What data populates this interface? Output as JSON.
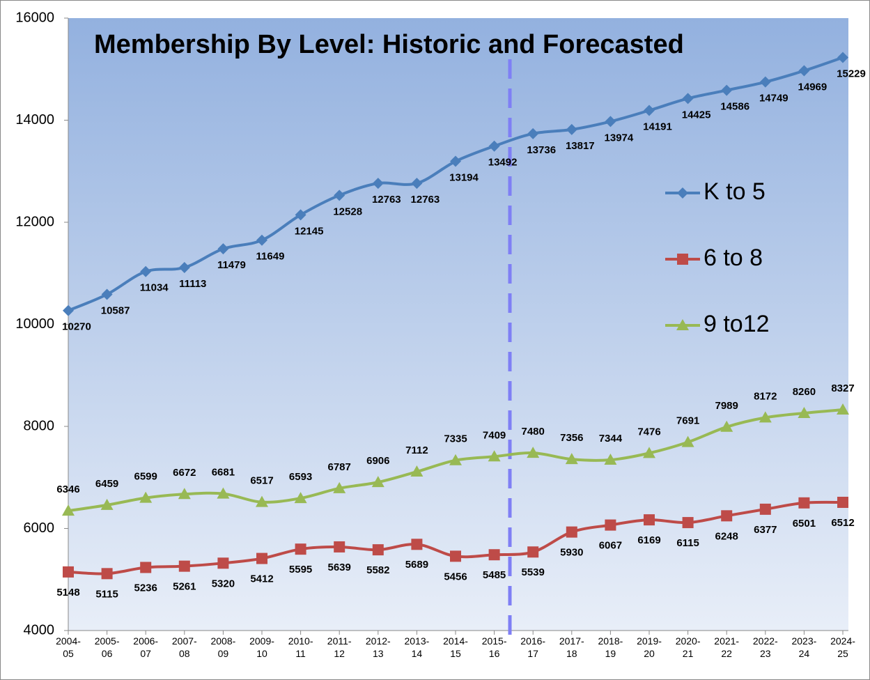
{
  "chart_data": {
    "type": "line",
    "title": "Membership By Level: Historic and Forecasted",
    "categories": [
      "2004-05",
      "2005-06",
      "2006-07",
      "2007-08",
      "2008-09",
      "2009-10",
      "2010-11",
      "2011-12",
      "2012-13",
      "2013-14",
      "2014-15",
      "2015-16",
      "2016-17",
      "2017-18",
      "2018-19",
      "2019-20",
      "2020-21",
      "2021-22",
      "2022-23",
      "2023-24",
      "2024-25"
    ],
    "series": [
      {
        "name": "K to 5",
        "color": "#4a7ebb",
        "marker": "diamond",
        "values": [
          10270,
          10587,
          11034,
          11113,
          11479,
          11649,
          12145,
          12528,
          12763,
          12763,
          13194,
          13492,
          13736,
          13817,
          13974,
          14191,
          14425,
          14586,
          14749,
          14969,
          15229
        ]
      },
      {
        "name": "6 to 8",
        "color": "#be4b48",
        "marker": "square",
        "values": [
          5148,
          5115,
          5236,
          5261,
          5320,
          5412,
          5595,
          5639,
          5582,
          5689,
          5456,
          5485,
          5539,
          5930,
          6067,
          6169,
          6115,
          6248,
          6377,
          6501,
          6512
        ]
      },
      {
        "name": "9 to12",
        "color": "#98b954",
        "marker": "triangle",
        "values": [
          6346,
          6459,
          6599,
          6672,
          6681,
          6517,
          6593,
          6787,
          6906,
          7112,
          7335,
          7409,
          7480,
          7356,
          7344,
          7476,
          7691,
          7989,
          8172,
          8260,
          8327
        ]
      }
    ],
    "ylim": [
      4000,
      16000
    ],
    "yticks": [
      4000,
      6000,
      8000,
      10000,
      12000,
      14000,
      16000
    ],
    "legend": "right",
    "grid": false
  }
}
